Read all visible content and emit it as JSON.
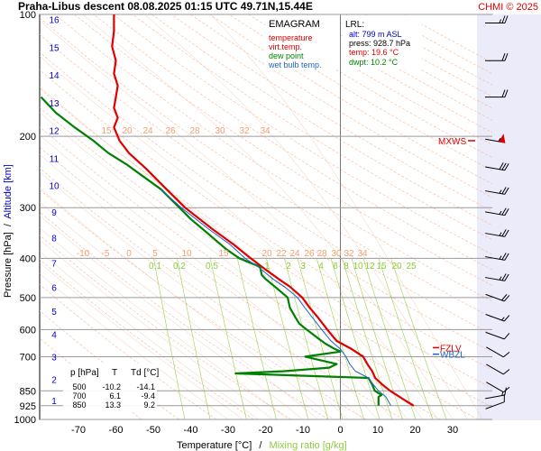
{
  "header": {
    "title": "Praha-Libus   descent   08.08.2025 01:15 UTC  49.71N,15.44E",
    "copyright": "CHMI © 2025"
  },
  "legend": {
    "title": "EMAGRAM",
    "items": [
      {
        "label": "temperature",
        "color": "#e00000"
      },
      {
        "label": "virt.temp.",
        "color": "#e00000"
      },
      {
        "label": "dew point",
        "color": "#008000"
      },
      {
        "label": "wet bulb temp.",
        "color": "#1e64c8"
      }
    ]
  },
  "lrl": {
    "title": "LRL:",
    "lines": [
      {
        "text": "alt: 799 m ASL",
        "color": "#0000c8"
      },
      {
        "text": "press: 928.7 hPa",
        "color": "#000000"
      },
      {
        "text": "temp: 19.6 °C",
        "color": "#e00000"
      },
      {
        "text": "dwpt: 10.2 °C",
        "color": "#008000"
      }
    ]
  },
  "table": {
    "headers": [
      "p [hPa]",
      "T",
      "Td [°C]"
    ],
    "rows": [
      [
        "500",
        "-10.2",
        "-14.1"
      ],
      [
        "700",
        "6.1",
        "-9.4"
      ],
      [
        "850",
        "13.3",
        "9.2"
      ]
    ]
  },
  "levels": {
    "mxws": "MXWS",
    "fzlv": "FZLV",
    "wbzl": "WBZL"
  },
  "axes": {
    "ylabel_pressure": "Pressure [hPa]",
    "ylabel_sep": "/",
    "ylabel_altitude": "Altitude [km]",
    "xlabel_temp": "Temperature [°C]",
    "xlabel_sep": "/",
    "xlabel_mix": "Mixing ratio [g/kg]"
  },
  "chart_data": {
    "type": "line",
    "x_unit": "°C",
    "y_unit": "hPa",
    "y_log": true,
    "xlim": [
      -80,
      40
    ],
    "ylim": [
      1000,
      100
    ],
    "x_ticks": [
      -70,
      -60,
      -50,
      -40,
      -30,
      -20,
      -10,
      0,
      10,
      20,
      30
    ],
    "pressure_ticks": [
      100,
      200,
      300,
      400,
      500,
      600,
      700,
      850,
      925,
      1000
    ],
    "altitude_ticks_km": [
      1,
      2,
      3,
      4,
      5,
      6,
      7,
      8,
      9,
      10,
      11,
      12,
      13,
      14,
      15,
      16
    ],
    "adiabat_labels": [
      -10,
      -5,
      0,
      5,
      10,
      15,
      20,
      22,
      24,
      26,
      28,
      30,
      32,
      34
    ],
    "adiabat_labels_upper": [
      15,
      20,
      24,
      26,
      28,
      30,
      32,
      34
    ],
    "mixing_ratio_labels": [
      "0.1",
      "0.2",
      "0.5",
      "1",
      "2",
      "3",
      "4",
      "6",
      "8",
      "10",
      "12",
      "15",
      "20",
      "25"
    ],
    "series": [
      {
        "name": "temperature",
        "color": "#e00000",
        "points": [
          [
            925,
            19.6
          ],
          [
            900,
            17.5
          ],
          [
            870,
            15.0
          ],
          [
            850,
            13.3
          ],
          [
            820,
            11.2
          ],
          [
            790,
            9.3
          ],
          [
            760,
            8.5
          ],
          [
            730,
            7.2
          ],
          [
            700,
            6.1
          ],
          [
            670,
            3.0
          ],
          [
            640,
            -1.0
          ],
          [
            600,
            -3.5
          ],
          [
            560,
            -6.0
          ],
          [
            530,
            -8.2
          ],
          [
            500,
            -10.2
          ],
          [
            470,
            -13.5
          ],
          [
            450,
            -16.5
          ],
          [
            420,
            -21.0
          ],
          [
            400,
            -24.0
          ],
          [
            370,
            -28.5
          ],
          [
            340,
            -34.0
          ],
          [
            300,
            -41.5
          ],
          [
            270,
            -46.5
          ],
          [
            240,
            -52.0
          ],
          [
            220,
            -56.5
          ],
          [
            205,
            -59.0
          ],
          [
            200,
            -59.5
          ],
          [
            190,
            -60.5
          ],
          [
            180,
            -59.5
          ],
          [
            170,
            -60.5
          ],
          [
            160,
            -60.0
          ],
          [
            150,
            -59.5
          ],
          [
            140,
            -60.5
          ],
          [
            130,
            -60.0
          ],
          [
            120,
            -61.0
          ],
          [
            110,
            -60.5
          ],
          [
            100,
            -60.5
          ]
        ]
      },
      {
        "name": "dew point",
        "color": "#008000",
        "points": [
          [
            925,
            10.2
          ],
          [
            880,
            10.2
          ],
          [
            870,
            11.0
          ],
          [
            850,
            9.2
          ],
          [
            820,
            8.5
          ],
          [
            790,
            7.5
          ],
          [
            770,
            -28.0
          ],
          [
            760,
            -15.0
          ],
          [
            745,
            -3.0
          ],
          [
            730,
            -1.0
          ],
          [
            700,
            -9.4
          ],
          [
            680,
            0.0
          ],
          [
            670,
            -1.5
          ],
          [
            650,
            -4.0
          ],
          [
            630,
            -6.0
          ],
          [
            600,
            -9.0
          ],
          [
            580,
            -11.0
          ],
          [
            560,
            -12.0
          ],
          [
            530,
            -13.5
          ],
          [
            500,
            -14.1
          ],
          [
            470,
            -17.5
          ],
          [
            450,
            -20.0
          ],
          [
            440,
            -21.0
          ],
          [
            420,
            -21.5
          ],
          [
            400,
            -27.0
          ],
          [
            380,
            -30.5
          ],
          [
            350,
            -35.0
          ],
          [
            320,
            -40.0
          ],
          [
            300,
            -43.0
          ],
          [
            270,
            -48.0
          ],
          [
            250,
            -53.0
          ],
          [
            235,
            -57.0
          ],
          [
            220,
            -62.0
          ],
          [
            205,
            -66.0
          ],
          [
            190,
            -71.0
          ],
          [
            175,
            -76.0
          ],
          [
            160,
            -80.0
          ]
        ]
      },
      {
        "name": "wet bulb temp.",
        "color": "#1e64c8",
        "points": [
          [
            925,
            13.5
          ],
          [
            880,
            12.2
          ],
          [
            850,
            10.2
          ],
          [
            820,
            8.8
          ],
          [
            790,
            7.5
          ],
          [
            760,
            4.0
          ],
          [
            730,
            2.5
          ],
          [
            700,
            1.5
          ],
          [
            670,
            0.0
          ],
          [
            640,
            -2.5
          ],
          [
            600,
            -5.0
          ],
          [
            560,
            -7.5
          ],
          [
            530,
            -9.5
          ],
          [
            500,
            -11.5
          ],
          [
            470,
            -15.0
          ],
          [
            450,
            -18.0
          ],
          [
            420,
            -22.0
          ],
          [
            400,
            -25.5
          ],
          [
            370,
            -29.5
          ],
          [
            340,
            -35.0
          ],
          [
            300,
            -42.5
          ],
          [
            270,
            -48.0
          ]
        ]
      }
    ],
    "annotations": [
      {
        "text": "MXWS",
        "pressure": 205
      },
      {
        "text": "FZLV",
        "pressure": 665
      },
      {
        "text": "WBZL",
        "pressure": 690
      }
    ],
    "wind_barbs": [
      {
        "pressure": 105,
        "dir": 270,
        "speed_kt": 25
      },
      {
        "pressure": 130,
        "dir": 270,
        "speed_kt": 20
      },
      {
        "pressure": 160,
        "dir": 270,
        "speed_kt": 20
      },
      {
        "pressure": 205,
        "dir": 280,
        "speed_kt": 55
      },
      {
        "pressure": 240,
        "dir": 280,
        "speed_kt": 30
      },
      {
        "pressure": 275,
        "dir": 280,
        "speed_kt": 25
      },
      {
        "pressure": 310,
        "dir": 280,
        "speed_kt": 25
      },
      {
        "pressure": 350,
        "dir": 280,
        "speed_kt": 25
      },
      {
        "pressure": 400,
        "dir": 280,
        "speed_kt": 25
      },
      {
        "pressure": 450,
        "dir": 280,
        "speed_kt": 25
      },
      {
        "pressure": 500,
        "dir": 290,
        "speed_kt": 20
      },
      {
        "pressure": 560,
        "dir": 290,
        "speed_kt": 15
      },
      {
        "pressure": 620,
        "dir": 290,
        "speed_kt": 10
      },
      {
        "pressure": 680,
        "dir": 300,
        "speed_kt": 10
      },
      {
        "pressure": 750,
        "dir": 300,
        "speed_kt": 10
      },
      {
        "pressure": 830,
        "dir": 300,
        "speed_kt": 10
      },
      {
        "pressure": 880,
        "dir": 260,
        "speed_kt": 15
      },
      {
        "pressure": 925,
        "dir": 250,
        "speed_kt": 10
      }
    ]
  }
}
